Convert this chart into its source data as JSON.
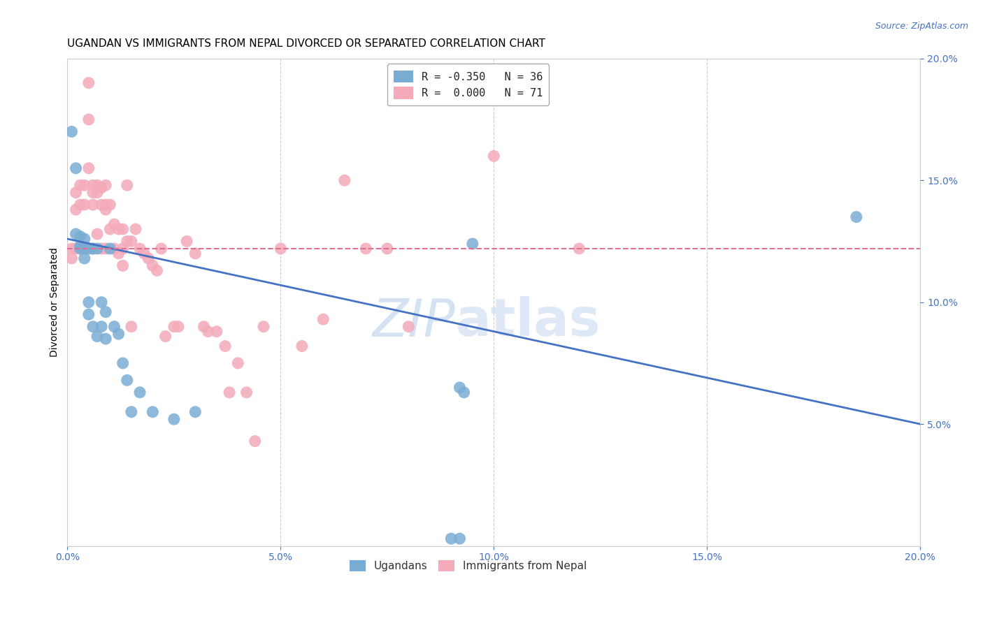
{
  "title": "UGANDAN VS IMMIGRANTS FROM NEPAL DIVORCED OR SEPARATED CORRELATION CHART",
  "source": "Source: ZipAtlas.com",
  "ylabel": "Divorced or Separated",
  "legend_entries": [
    {
      "label": "R = -0.350   N = 36",
      "color": "#aac4e0"
    },
    {
      "label": "R =  0.000   N = 71",
      "color": "#f4aab9"
    }
  ],
  "legend_labels_bottom": [
    "Ugandans",
    "Immigrants from Nepal"
  ],
  "xlim": [
    0.0,
    0.2
  ],
  "ylim": [
    0.0,
    0.2
  ],
  "xticks": [
    0.0,
    0.05,
    0.1,
    0.15,
    0.2
  ],
  "yticks_right": [
    0.05,
    0.1,
    0.15,
    0.2
  ],
  "ugandans_x": [
    0.001,
    0.002,
    0.002,
    0.003,
    0.003,
    0.003,
    0.004,
    0.004,
    0.004,
    0.005,
    0.005,
    0.005,
    0.006,
    0.006,
    0.007,
    0.007,
    0.008,
    0.008,
    0.009,
    0.009,
    0.01,
    0.011,
    0.012,
    0.013,
    0.014,
    0.015,
    0.017,
    0.02,
    0.025,
    0.03,
    0.09,
    0.092,
    0.095,
    0.185,
    0.092,
    0.093
  ],
  "ugandans_y": [
    0.17,
    0.155,
    0.128,
    0.127,
    0.123,
    0.122,
    0.126,
    0.122,
    0.118,
    0.122,
    0.1,
    0.095,
    0.122,
    0.09,
    0.122,
    0.086,
    0.1,
    0.09,
    0.096,
    0.085,
    0.122,
    0.09,
    0.087,
    0.075,
    0.068,
    0.055,
    0.063,
    0.055,
    0.052,
    0.055,
    0.003,
    0.003,
    0.124,
    0.135,
    0.065,
    0.063
  ],
  "nepal_x": [
    0.001,
    0.001,
    0.002,
    0.002,
    0.002,
    0.003,
    0.003,
    0.003,
    0.004,
    0.004,
    0.004,
    0.005,
    0.005,
    0.005,
    0.006,
    0.006,
    0.006,
    0.006,
    0.007,
    0.007,
    0.007,
    0.008,
    0.008,
    0.008,
    0.009,
    0.009,
    0.009,
    0.009,
    0.01,
    0.01,
    0.011,
    0.011,
    0.012,
    0.012,
    0.013,
    0.013,
    0.013,
    0.014,
    0.014,
    0.015,
    0.015,
    0.016,
    0.017,
    0.018,
    0.019,
    0.02,
    0.021,
    0.022,
    0.023,
    0.025,
    0.026,
    0.028,
    0.03,
    0.032,
    0.033,
    0.035,
    0.037,
    0.038,
    0.04,
    0.042,
    0.044,
    0.046,
    0.05,
    0.055,
    0.06,
    0.065,
    0.07,
    0.075,
    0.08,
    0.1,
    0.12
  ],
  "nepal_y": [
    0.122,
    0.118,
    0.145,
    0.138,
    0.122,
    0.148,
    0.14,
    0.122,
    0.148,
    0.14,
    0.122,
    0.19,
    0.175,
    0.155,
    0.148,
    0.145,
    0.14,
    0.122,
    0.148,
    0.145,
    0.128,
    0.147,
    0.14,
    0.122,
    0.148,
    0.14,
    0.138,
    0.122,
    0.14,
    0.13,
    0.132,
    0.122,
    0.13,
    0.12,
    0.13,
    0.122,
    0.115,
    0.148,
    0.125,
    0.125,
    0.09,
    0.13,
    0.122,
    0.12,
    0.118,
    0.115,
    0.113,
    0.122,
    0.086,
    0.09,
    0.09,
    0.125,
    0.12,
    0.09,
    0.088,
    0.088,
    0.082,
    0.063,
    0.075,
    0.063,
    0.043,
    0.09,
    0.122,
    0.082,
    0.093,
    0.15,
    0.122,
    0.122,
    0.09,
    0.16,
    0.122
  ],
  "ugandan_color": "#7aadd4",
  "nepal_color": "#f4aab9",
  "ugandan_line_color": "#4472c4",
  "nepal_line_color": "#e07090",
  "nepal_line_flat_y": 0.122,
  "blue_line_x0": 0.0,
  "blue_line_y0": 0.126,
  "blue_line_x1": 0.2,
  "blue_line_y1": 0.05,
  "background_color": "#ffffff",
  "grid_color": "#cccccc",
  "tick_label_color": "#4472c4",
  "watermark_zip": "ZIP",
  "watermark_atlas": "atlas",
  "watermark_color_zip": "#b8cfe8",
  "watermark_color_atlas": "#c8daf0",
  "title_fontsize": 11,
  "axis_fontsize": 10,
  "tick_fontsize": 10,
  "legend_fontsize": 11
}
